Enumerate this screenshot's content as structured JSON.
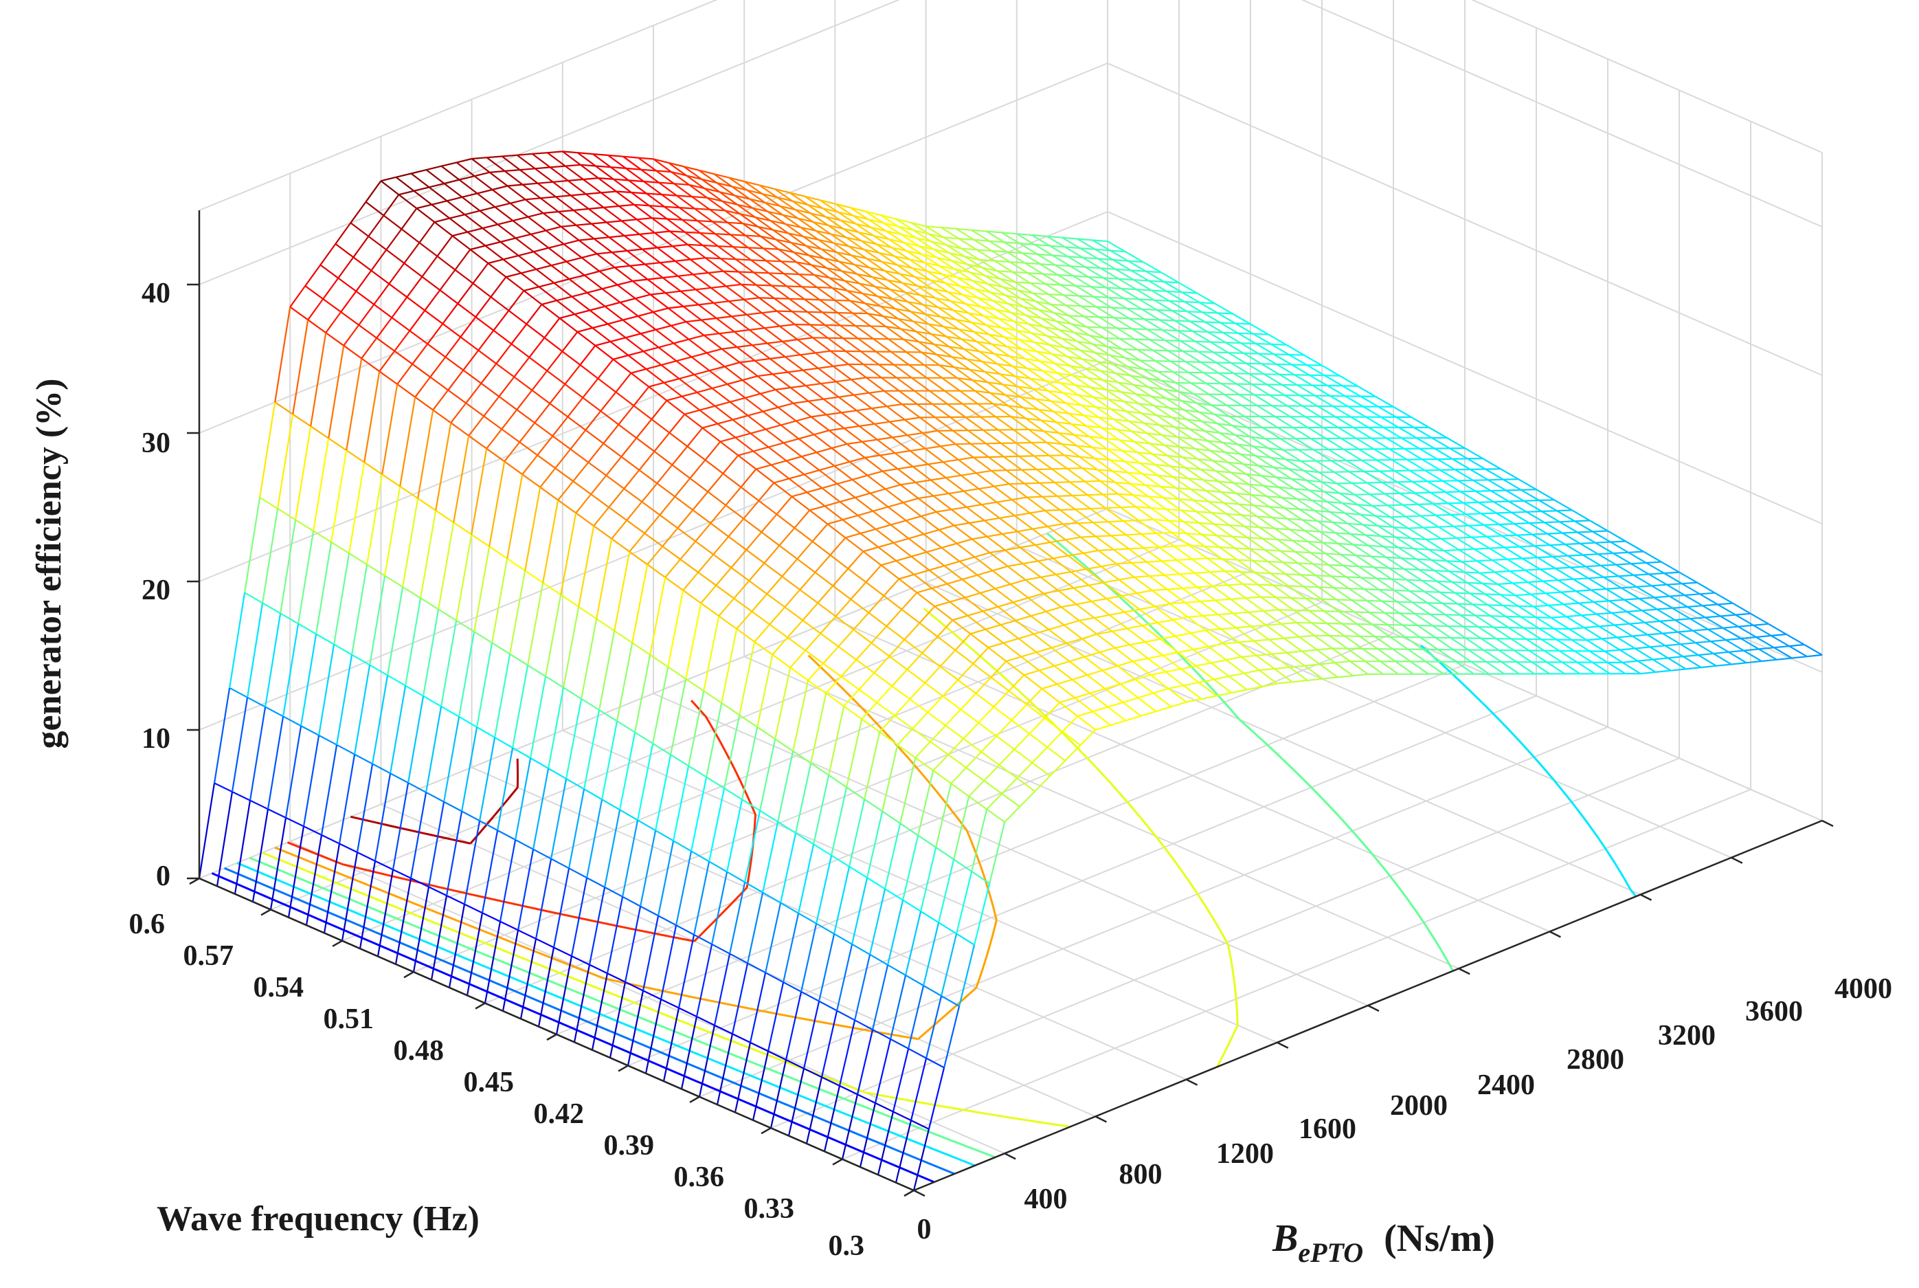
{
  "chart_data": {
    "type": "surface-mesh-3d",
    "title": "",
    "xlabel": "Wave frequency (Hz)",
    "ylabel_main": "B",
    "ylabel_sub": "ePTO",
    "ylabel_unit": "(Ns/m)",
    "zlabel": "generator efficiency (%)",
    "frequency_ticks": [
      "0.6",
      "0.57",
      "0.54",
      "0.51",
      "0.48",
      "0.45",
      "0.42",
      "0.39",
      "0.36",
      "0.33",
      "0.3"
    ],
    "bepto_ticks": [
      "0",
      "400",
      "800",
      "1200",
      "1600",
      "2000",
      "2400",
      "2800",
      "3200",
      "3600",
      "4000"
    ],
    "efficiency_ticks": [
      "0",
      "10",
      "20",
      "30",
      "40"
    ],
    "xlim": [
      0.3,
      0.6
    ],
    "ylim": [
      0,
      4000
    ],
    "zlim": [
      0,
      45
    ],
    "bepto_values": [
      0,
      400,
      800,
      1200,
      1600,
      2000,
      2400,
      2800,
      3200,
      3600,
      4000
    ],
    "peak_efficiency_by_bepto": [
      0,
      36,
      42,
      41,
      39,
      36,
      32,
      28,
      24,
      21,
      18
    ],
    "frequency_factor": {
      "at_0.3": 0.62,
      "at_0.6": 1.0
    },
    "contour_levels": [
      5,
      10,
      15,
      20,
      25,
      30,
      35,
      40
    ],
    "colormap": [
      "#00008f",
      "#0000ff",
      "#00ffff",
      "#ffff00",
      "#ff0000",
      "#800000"
    ],
    "grid": "on"
  }
}
